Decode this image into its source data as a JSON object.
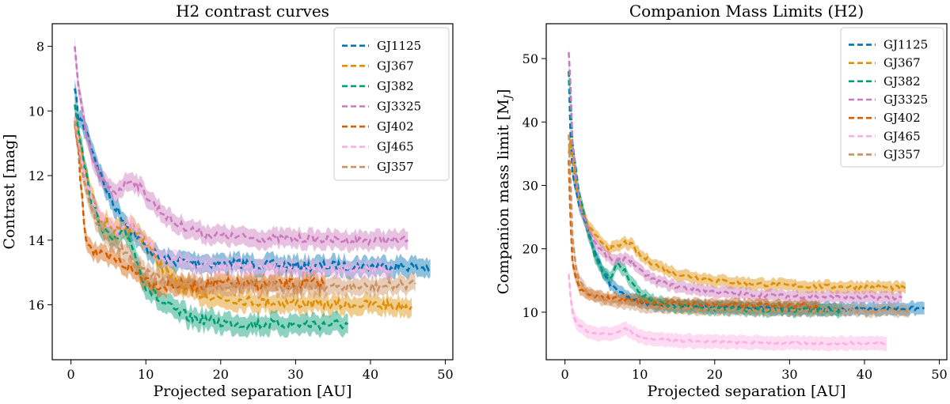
{
  "chart_data": [
    {
      "type": "line",
      "title": "H2 contrast curves",
      "xlabel": "Projected separation [AU]",
      "ylabel": "Contrast [mag]",
      "xlim": [
        -2.5,
        51
      ],
      "ylim": [
        17.7,
        7.3
      ],
      "y_inverted": true,
      "xticks": [
        0,
        10,
        20,
        30,
        40,
        50
      ],
      "yticks": [
        8,
        10,
        12,
        14,
        16
      ],
      "legend_position": "top-right",
      "series": [
        {
          "name": "GJ1125",
          "color": "#0173b2",
          "band": 0.28,
          "noise": 0.15,
          "x": [
            0.5,
            1,
            2,
            3,
            4,
            5,
            6,
            8,
            10,
            12,
            14,
            18,
            25,
            30,
            35,
            40,
            44,
            48
          ],
          "y": [
            9.3,
            10.2,
            10.6,
            11.3,
            12.0,
            12.6,
            13.0,
            13.7,
            14.2,
            14.6,
            14.65,
            14.7,
            14.75,
            14.8,
            14.8,
            14.8,
            14.8,
            14.85
          ]
        },
        {
          "name": "GJ367",
          "color": "#de8f05",
          "band": 0.28,
          "noise": 0.15,
          "x": [
            0.5,
            1,
            2,
            3,
            4,
            5,
            6,
            7,
            8,
            10,
            12,
            14,
            16,
            20,
            25,
            30,
            35,
            40,
            45.5
          ],
          "y": [
            10.2,
            10.8,
            12.0,
            12.8,
            13.3,
            13.5,
            13.7,
            13.8,
            13.6,
            14.0,
            14.8,
            15.3,
            15.6,
            15.8,
            15.9,
            15.95,
            16.0,
            16.0,
            16.05
          ]
        },
        {
          "name": "GJ382",
          "color": "#029e73",
          "band": 0.3,
          "noise": 0.16,
          "x": [
            0.5,
            1,
            2,
            3,
            4,
            5,
            6,
            7,
            8,
            9,
            10,
            12,
            14,
            16,
            20,
            25,
            30,
            35,
            37
          ],
          "y": [
            9.8,
            10.5,
            12.0,
            13.0,
            13.5,
            13.9,
            14.0,
            13.8,
            14.0,
            14.8,
            15.4,
            15.9,
            16.2,
            16.4,
            16.55,
            16.6,
            16.6,
            16.6,
            16.6
          ]
        },
        {
          "name": "GJ3325",
          "color": "#cc78bc",
          "band": 0.28,
          "noise": 0.12,
          "x": [
            0.5,
            1,
            2,
            3,
            4,
            5,
            6,
            7,
            8,
            9,
            10,
            12,
            14,
            18,
            22,
            26,
            30,
            35,
            40,
            45
          ],
          "y": [
            8.0,
            9.3,
            10.7,
            11.6,
            12.1,
            12.4,
            12.5,
            12.3,
            12.1,
            12.3,
            12.6,
            13.1,
            13.5,
            13.8,
            13.9,
            13.95,
            13.95,
            14.0,
            14.0,
            14.0
          ]
        },
        {
          "name": "GJ402",
          "color": "#d55e00",
          "band": 0.26,
          "noise": 0.18,
          "x": [
            0.5,
            1,
            1.5,
            2,
            3,
            4,
            5,
            6,
            8,
            10,
            12,
            15,
            20,
            25,
            30,
            34
          ],
          "y": [
            10.4,
            11.3,
            12.8,
            13.9,
            14.3,
            14.5,
            14.6,
            14.6,
            14.9,
            15.2,
            15.4,
            15.4,
            15.35,
            15.4,
            15.35,
            15.35
          ]
        },
        {
          "name": "GJ465",
          "color": "#fbafe4",
          "band": 0.25,
          "noise": 0.1,
          "x": [
            0.5,
            1,
            2,
            3,
            4,
            5,
            6,
            8,
            10,
            12,
            15,
            20,
            25,
            30,
            35,
            40,
            43
          ],
          "y": [
            10.2,
            11.0,
            12.1,
            12.9,
            13.3,
            13.5,
            13.7,
            13.5,
            14.1,
            14.5,
            14.7,
            14.8,
            14.85,
            14.85,
            14.9,
            14.9,
            14.9
          ]
        },
        {
          "name": "GJ357",
          "color": "#ca9161",
          "band": 0.26,
          "noise": 0.14,
          "x": [
            0.5,
            1,
            2,
            3,
            4,
            5,
            6,
            8,
            10,
            12,
            15,
            20,
            25,
            30,
            35,
            40,
            46
          ],
          "y": [
            10.3,
            11.2,
            12.4,
            13.2,
            13.7,
            14.0,
            14.1,
            14.6,
            15.0,
            15.2,
            15.35,
            15.4,
            15.4,
            15.45,
            15.45,
            15.45,
            15.35
          ]
        }
      ]
    },
    {
      "type": "line",
      "title": "Companion Mass Limits (H2)",
      "xlabel": "Projected separation [AU]",
      "ylabel": "Companion mass limit [M",
      "ylabel_subscript": "J",
      "ylabel_suffix": "]",
      "xlim": [
        -2.5,
        51
      ],
      "ylim": [
        2.5,
        55.5
      ],
      "y_inverted": false,
      "xticks": [
        0,
        10,
        20,
        30,
        40,
        50
      ],
      "yticks": [
        10,
        20,
        30,
        40,
        50
      ],
      "legend_position": "top-right",
      "series": [
        {
          "name": "GJ1125",
          "color": "#0173b2",
          "band": 1.0,
          "noise": 0.3,
          "x": [
            0.5,
            0.8,
            1,
            1.5,
            2,
            3,
            4,
            5,
            6,
            8,
            10,
            12,
            15,
            20,
            25,
            30,
            35,
            40,
            44,
            48
          ],
          "y": [
            48,
            36,
            32,
            29,
            26.5,
            23,
            19.5,
            16.5,
            14.5,
            12.5,
            11.6,
            11.2,
            11.0,
            10.8,
            10.6,
            10.5,
            10.5,
            10.5,
            10.55,
            10.6
          ]
        },
        {
          "name": "GJ367",
          "color": "#de8f05",
          "band": 0.9,
          "noise": 0.35,
          "x": [
            0.5,
            0.8,
            1,
            1.5,
            2,
            3,
            4,
            5,
            6,
            7,
            8,
            9,
            10,
            12,
            15,
            20,
            25,
            30,
            35,
            40,
            45.5
          ],
          "y": [
            35,
            38,
            34,
            30,
            27,
            24,
            22,
            21,
            20,
            20.3,
            21,
            20.5,
            19.0,
            17.5,
            16.0,
            15.0,
            14.5,
            14.2,
            14.0,
            14.0,
            13.8
          ]
        },
        {
          "name": "GJ382",
          "color": "#029e73",
          "band": 1.0,
          "noise": 0.4,
          "x": [
            0.5,
            0.8,
            1,
            1.5,
            2,
            3,
            4,
            5,
            6,
            7,
            8,
            9,
            10,
            12,
            14,
            18,
            22,
            26,
            30,
            34,
            37
          ],
          "y": [
            48,
            42,
            37,
            32,
            28,
            23,
            19,
            16.5,
            15.5,
            17.5,
            16.5,
            14.5,
            13.0,
            11.5,
            11.0,
            10.6,
            10.5,
            10.4,
            10.4,
            10.3,
            10.3
          ]
        },
        {
          "name": "GJ3325",
          "color": "#cc78bc",
          "band": 0.9,
          "noise": 0.3,
          "x": [
            0.5,
            0.8,
            1,
            1.5,
            2,
            3,
            4,
            5,
            6,
            7,
            8,
            9,
            10,
            12,
            15,
            20,
            25,
            30,
            35,
            40,
            45
          ],
          "y": [
            51,
            44,
            37,
            31,
            27,
            23.5,
            21,
            19.5,
            18.5,
            18.0,
            18.6,
            18.0,
            16.5,
            15.0,
            14.0,
            13.2,
            12.8,
            12.5,
            12.4,
            12.3,
            12.3
          ]
        },
        {
          "name": "GJ402",
          "color": "#d55e00",
          "band": 0.9,
          "noise": 0.35,
          "x": [
            0.5,
            0.8,
            1,
            1.5,
            2,
            3,
            4,
            5,
            6,
            8,
            10,
            12,
            15,
            20,
            25,
            30,
            34
          ],
          "y": [
            34,
            23,
            18,
            15,
            13.5,
            12.8,
            12.5,
            12.3,
            12.2,
            12.0,
            11.8,
            11.5,
            11.3,
            11.2,
            11.1,
            11.1,
            11.0
          ]
        },
        {
          "name": "GJ465",
          "color": "#fbafe4",
          "band": 1.1,
          "noise": 0.2,
          "x": [
            0.5,
            0.8,
            1,
            1.5,
            2,
            3,
            4,
            5,
            6,
            7,
            8,
            9,
            10,
            12,
            15,
            20,
            25,
            30,
            35,
            40,
            43
          ],
          "y": [
            16,
            12,
            10,
            8.5,
            7.8,
            7.0,
            6.6,
            6.5,
            6.6,
            7.0,
            7.3,
            6.8,
            6.2,
            5.8,
            5.5,
            5.3,
            5.2,
            5.1,
            5.1,
            5.1,
            5.1
          ]
        },
        {
          "name": "GJ357",
          "color": "#ca9161",
          "band": 0.9,
          "noise": 0.3,
          "x": [
            0.5,
            0.8,
            1,
            1.5,
            2,
            3,
            4,
            5,
            6,
            8,
            10,
            12,
            15,
            20,
            25,
            30,
            35,
            40,
            46
          ],
          "y": [
            38,
            29,
            22,
            17,
            15,
            13.2,
            12.5,
            12.0,
            11.8,
            11.4,
            11.0,
            10.8,
            10.6,
            10.5,
            10.4,
            10.3,
            10.3,
            10.2,
            10.2
          ]
        }
      ]
    }
  ]
}
